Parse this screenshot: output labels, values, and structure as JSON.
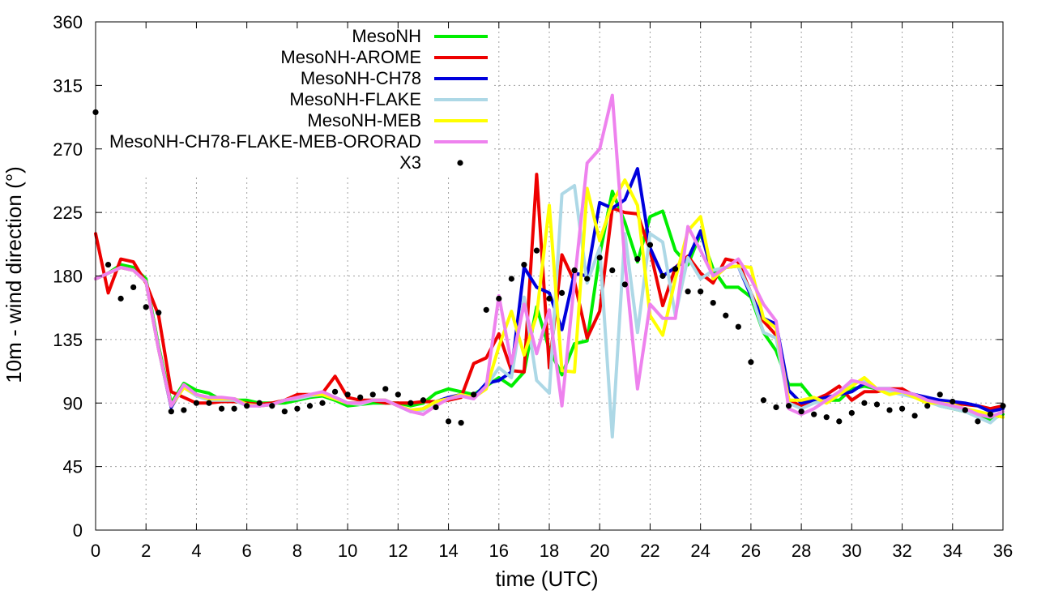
{
  "chart_data": {
    "type": "line",
    "title": "",
    "xlabel": "time (UTC)",
    "ylabel": "10m - wind direction (°)",
    "xlim": [
      0,
      36
    ],
    "ylim": [
      0,
      360
    ],
    "xticks": [
      0,
      2,
      4,
      6,
      8,
      10,
      12,
      14,
      16,
      18,
      20,
      22,
      24,
      26,
      28,
      30,
      32,
      34,
      36
    ],
    "yticks": [
      0,
      45,
      90,
      135,
      180,
      225,
      270,
      315,
      360
    ],
    "grid": true,
    "legend_position": "top-left",
    "series": [
      {
        "name": "MesoNH",
        "color": "#00ee00",
        "style": "line",
        "x": [
          0,
          0.5,
          1,
          1.5,
          2,
          2.5,
          3,
          3.5,
          4,
          4.5,
          5,
          5.5,
          6,
          6.5,
          7,
          7.5,
          8,
          8.5,
          9,
          9.5,
          10,
          10.5,
          11,
          11.5,
          12,
          12.5,
          13,
          13.5,
          14,
          14.5,
          15,
          15.5,
          16,
          16.5,
          17,
          17.5,
          18,
          18.5,
          19,
          19.5,
          20,
          20.5,
          21,
          21.5,
          22,
          22.5,
          23,
          23.5,
          24,
          24.5,
          25,
          25.5,
          26,
          26.5,
          27,
          27.5,
          28,
          28.5,
          29,
          29.5,
          30,
          30.5,
          31,
          31.5,
          32,
          32.5,
          33,
          33.5,
          34,
          34.5,
          35,
          35.5,
          36
        ],
        "y": [
          178,
          182,
          188,
          186,
          178,
          130,
          90,
          104,
          99,
          97,
          92,
          92,
          92,
          90,
          90,
          90,
          92,
          94,
          95,
          92,
          88,
          89,
          90,
          90,
          90,
          88,
          90,
          97,
          100,
          98,
          96,
          102,
          108,
          102,
          112,
          158,
          128,
          110,
          132,
          134,
          195,
          240,
          218,
          190,
          222,
          226,
          198,
          188,
          210,
          185,
          172,
          172,
          165,
          140,
          127,
          103,
          103,
          92,
          92,
          92,
          100,
          102,
          100,
          100,
          98,
          96,
          92,
          88,
          86,
          84,
          82,
          78,
          82
        ]
      },
      {
        "name": "MesoNH-AROME",
        "color": "#ee0000",
        "style": "line",
        "x": [
          0,
          0.5,
          1,
          1.5,
          2,
          2.5,
          3,
          3.5,
          4,
          4.5,
          5,
          5.5,
          6,
          6.5,
          7,
          7.5,
          8,
          8.5,
          9,
          9.5,
          10,
          10.5,
          11,
          11.5,
          12,
          12.5,
          13,
          13.5,
          14,
          14.5,
          15,
          15.5,
          16,
          16.5,
          17,
          17.5,
          18,
          18.5,
          19,
          19.5,
          20,
          20.5,
          21,
          21.5,
          22,
          22.5,
          23,
          23.5,
          24,
          24.5,
          25,
          25.5,
          26,
          26.5,
          27,
          27.5,
          28,
          28.5,
          29,
          29.5,
          30,
          30.5,
          31,
          31.5,
          32,
          32.5,
          33,
          33.5,
          34,
          34.5,
          35,
          35.5,
          36
        ],
        "y": [
          210,
          168,
          192,
          190,
          175,
          152,
          98,
          94,
          90,
          90,
          91,
          91,
          90,
          89,
          90,
          92,
          96,
          96,
          97,
          109,
          94,
          92,
          92,
          90,
          90,
          90,
          91,
          91,
          92,
          94,
          118,
          122,
          139,
          113,
          112,
          252,
          115,
          195,
          176,
          136,
          155,
          228,
          225,
          224,
          198,
          159,
          186,
          194,
          182,
          175,
          192,
          190,
          168,
          148,
          138,
          92,
          88,
          92,
          96,
          102,
          92,
          98,
          98,
          100,
          100,
          95,
          92,
          90,
          90,
          89,
          88,
          86,
          88
        ]
      },
      {
        "name": "MesoNH-CH78",
        "color": "#0000dd",
        "style": "line",
        "x": [
          0,
          0.5,
          1,
          1.5,
          2,
          2.5,
          3,
          3.5,
          4,
          4.5,
          5,
          5.5,
          6,
          6.5,
          7,
          7.5,
          8,
          8.5,
          9,
          9.5,
          10,
          10.5,
          11,
          11.5,
          12,
          12.5,
          13,
          13.5,
          14,
          14.5,
          15,
          15.5,
          16,
          16.5,
          17,
          17.5,
          18,
          18.5,
          19,
          19.5,
          20,
          20.5,
          21,
          21.5,
          22,
          22.5,
          23,
          23.5,
          24,
          24.5,
          25,
          25.5,
          26,
          26.5,
          27,
          27.5,
          28,
          28.5,
          29,
          29.5,
          30,
          30.5,
          31,
          31.5,
          32,
          32.5,
          33,
          33.5,
          34,
          34.5,
          35,
          35.5,
          36
        ],
        "y": [
          178,
          182,
          186,
          184,
          176,
          128,
          87,
          102,
          96,
          93,
          93,
          93,
          89,
          88,
          89,
          92,
          93,
          95,
          96,
          94,
          90,
          90,
          92,
          92,
          88,
          84,
          86,
          91,
          94,
          96,
          94,
          104,
          106,
          112,
          186,
          172,
          168,
          142,
          182,
          180,
          232,
          228,
          234,
          256,
          200,
          180,
          186,
          192,
          212,
          180,
          186,
          187,
          166,
          150,
          146,
          99,
          90,
          92,
          94,
          96,
          98,
          104,
          100,
          100,
          98,
          96,
          94,
          92,
          91,
          90,
          88,
          84,
          86
        ]
      },
      {
        "name": "MesoNH-FLAKE",
        "color": "#add8e6",
        "style": "line",
        "x": [
          0,
          0.5,
          1,
          1.5,
          2,
          2.5,
          3,
          3.5,
          4,
          4.5,
          5,
          5.5,
          6,
          6.5,
          7,
          7.5,
          8,
          8.5,
          9,
          9.5,
          10,
          10.5,
          11,
          11.5,
          12,
          12.5,
          13,
          13.5,
          14,
          14.5,
          15,
          15.5,
          16,
          16.5,
          17,
          17.5,
          18,
          18.5,
          19,
          19.5,
          20,
          20.5,
          21,
          21.5,
          22,
          22.5,
          23,
          23.5,
          24,
          24.5,
          25,
          25.5,
          26,
          26.5,
          27,
          27.5,
          28,
          28.5,
          29,
          29.5,
          30,
          30.5,
          31,
          31.5,
          32,
          32.5,
          33,
          33.5,
          34,
          34.5,
          35,
          35.5,
          36
        ],
        "y": [
          178,
          182,
          186,
          184,
          176,
          128,
          88,
          101,
          95,
          92,
          92,
          92,
          88,
          88,
          89,
          92,
          93,
          95,
          96,
          93,
          90,
          89,
          92,
          92,
          88,
          84,
          85,
          91,
          93,
          95,
          93,
          102,
          115,
          108,
          165,
          106,
          97,
          238,
          244,
          175,
          200,
          66,
          210,
          140,
          210,
          204,
          152,
          193,
          178,
          184,
          186,
          187,
          168,
          140,
          136,
          90,
          86,
          90,
          92,
          96,
          104,
          106,
          100,
          98,
          96,
          94,
          91,
          88,
          86,
          84,
          80,
          76,
          84
        ]
      },
      {
        "name": "MesoNH-MEB",
        "color": "#ffff00",
        "style": "line",
        "x": [
          0,
          0.5,
          1,
          1.5,
          2,
          2.5,
          3,
          3.5,
          4,
          4.5,
          5,
          5.5,
          6,
          6.5,
          7,
          7.5,
          8,
          8.5,
          9,
          9.5,
          10,
          10.5,
          11,
          11.5,
          12,
          12.5,
          13,
          13.5,
          14,
          14.5,
          15,
          15.5,
          16,
          16.5,
          17,
          17.5,
          18,
          18.5,
          19,
          19.5,
          20,
          20.5,
          21,
          21.5,
          22,
          22.5,
          23,
          23.5,
          24,
          24.5,
          25,
          25.5,
          26,
          26.5,
          27,
          27.5,
          28,
          28.5,
          29,
          29.5,
          30,
          30.5,
          31,
          31.5,
          32,
          32.5,
          33,
          33.5,
          34,
          34.5,
          35,
          35.5,
          36
        ],
        "y": [
          178,
          182,
          186,
          184,
          176,
          128,
          88,
          101,
          96,
          93,
          93,
          93,
          89,
          88,
          89,
          92,
          94,
          96,
          96,
          93,
          90,
          90,
          92,
          92,
          88,
          85,
          86,
          91,
          93,
          96,
          94,
          100,
          130,
          155,
          124,
          152,
          230,
          113,
          112,
          242,
          205,
          232,
          248,
          230,
          152,
          138,
          178,
          212,
          222,
          178,
          186,
          187,
          186,
          150,
          143,
          92,
          92,
          94,
          90,
          96,
          102,
          108,
          100,
          96,
          98,
          94,
          90,
          90,
          89,
          86,
          84,
          82,
          80
        ]
      },
      {
        "name": "MesoNH-CH78-FLAKE-MEB-ORORAD",
        "color": "#ee82ee",
        "style": "line",
        "x": [
          0,
          0.5,
          1,
          1.5,
          2,
          2.5,
          3,
          3.5,
          4,
          4.5,
          5,
          5.5,
          6,
          6.5,
          7,
          7.5,
          8,
          8.5,
          9,
          9.5,
          10,
          10.5,
          11,
          11.5,
          12,
          12.5,
          13,
          13.5,
          14,
          14.5,
          15,
          15.5,
          16,
          16.5,
          17,
          17.5,
          18,
          18.5,
          19,
          19.5,
          20,
          20.5,
          21,
          21.5,
          22,
          22.5,
          23,
          23.5,
          24,
          24.5,
          25,
          25.5,
          26,
          26.5,
          27,
          27.5,
          28,
          28.5,
          29,
          29.5,
          30,
          30.5,
          31,
          31.5,
          32,
          32.5,
          33,
          33.5,
          34,
          34.5,
          35,
          35.5,
          36
        ],
        "y": [
          178,
          182,
          186,
          184,
          176,
          128,
          88,
          103,
          96,
          94,
          94,
          93,
          88,
          88,
          89,
          92,
          94,
          96,
          98,
          94,
          90,
          90,
          92,
          92,
          88,
          84,
          82,
          88,
          93,
          95,
          93,
          102,
          166,
          118,
          160,
          125,
          156,
          88,
          176,
          260,
          270,
          308,
          190,
          100,
          160,
          150,
          150,
          215,
          198,
          180,
          186,
          192,
          178,
          160,
          148,
          86,
          82,
          86,
          92,
          98,
          106,
          104,
          100,
          100,
          98,
          96,
          92,
          90,
          88,
          86,
          82,
          80,
          84
        ]
      },
      {
        "name": "X3",
        "color": "#000000",
        "style": "points",
        "x": [
          0,
          0.5,
          1,
          1.5,
          2,
          2.5,
          3,
          3.5,
          4,
          4.5,
          5,
          5.5,
          6,
          6.5,
          7,
          7.5,
          8,
          8.5,
          9,
          9.5,
          10,
          10.5,
          11,
          11.5,
          12,
          12.5,
          13,
          13.5,
          14,
          14.5,
          15,
          15.5,
          16,
          16.5,
          17,
          17.5,
          18,
          18.5,
          19,
          19.5,
          20,
          20.5,
          21,
          21.5,
          22,
          22.5,
          23,
          23.5,
          24,
          24.5,
          25,
          25.5,
          26,
          26.5,
          27,
          27.5,
          28,
          28.5,
          29,
          29.5,
          30,
          30.5,
          31,
          31.5,
          32,
          32.5,
          33,
          33.5,
          34,
          34.5,
          35,
          35.5,
          36
        ],
        "y": [
          296,
          188,
          164,
          172,
          158,
          154,
          84,
          85,
          90,
          90,
          86,
          86,
          88,
          90,
          88,
          84,
          86,
          88,
          90,
          98,
          96,
          94,
          96,
          100,
          96,
          90,
          92,
          87,
          77,
          76,
          96,
          156,
          164,
          178,
          188,
          198,
          164,
          168,
          184,
          178,
          193,
          184,
          174,
          192,
          202,
          180,
          185,
          169,
          169,
          161,
          152,
          144,
          119,
          92,
          87,
          88,
          84,
          82,
          80,
          77,
          83,
          90,
          89,
          85,
          86,
          81,
          88,
          96,
          91,
          85,
          77,
          82,
          88
        ]
      }
    ]
  }
}
